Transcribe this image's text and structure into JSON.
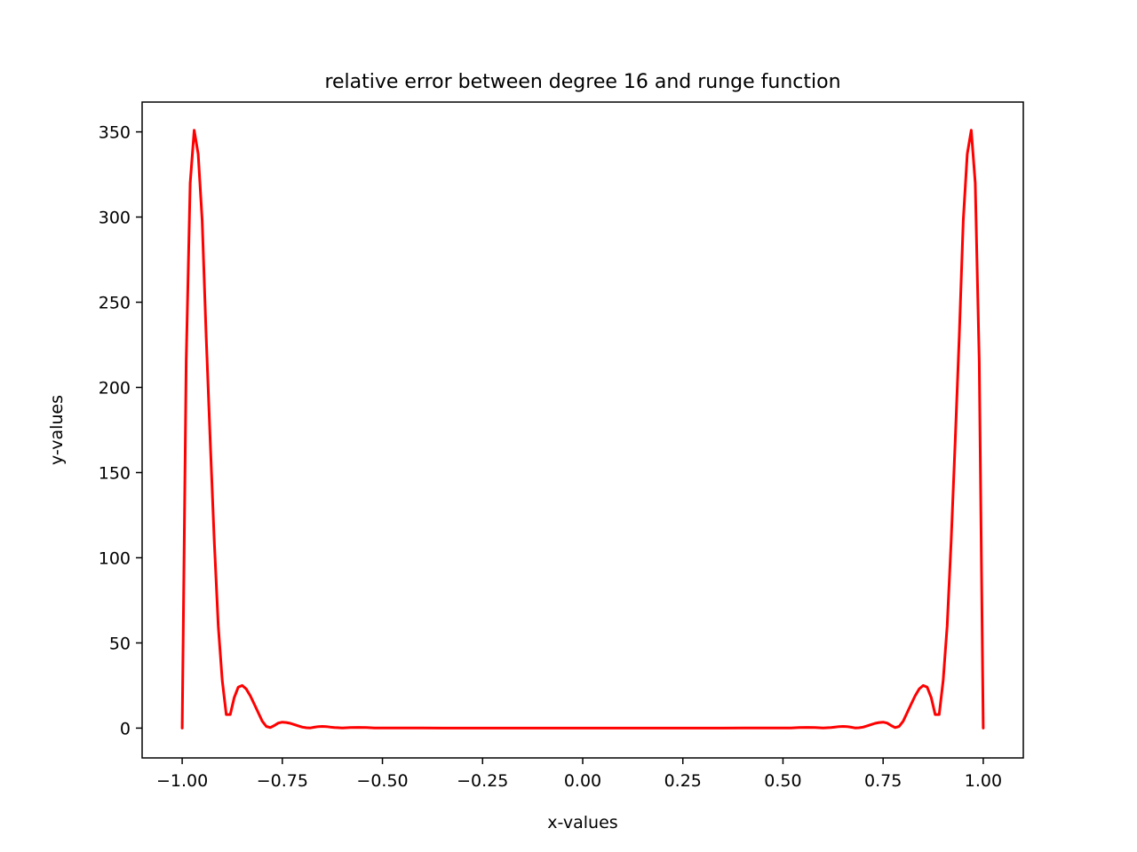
{
  "chart_data": {
    "type": "line",
    "title": "relative error between degree 16 and runge function",
    "xlabel": "x-values",
    "ylabel": "y-values",
    "xlim": [
      -1.1,
      1.1
    ],
    "ylim": [
      -17.5,
      367.5
    ],
    "xticks": [
      -1.0,
      -0.75,
      -0.5,
      -0.25,
      0.0,
      0.25,
      0.5,
      0.75,
      1.0
    ],
    "xtick_labels": [
      "−1.00",
      "−0.75",
      "−0.50",
      "−0.25",
      "0.00",
      "0.25",
      "0.50",
      "0.75",
      "1.00"
    ],
    "yticks": [
      0,
      50,
      100,
      150,
      200,
      250,
      300,
      350
    ],
    "ytick_labels": [
      "0",
      "50",
      "100",
      "150",
      "200",
      "250",
      "300",
      "350"
    ],
    "grid": false,
    "series": [
      {
        "color": "#ff0000",
        "x": [
          -1.0,
          -0.99,
          -0.98,
          -0.97,
          -0.96,
          -0.95,
          -0.94,
          -0.93,
          -0.92,
          -0.91,
          -0.9,
          -0.89,
          -0.88,
          -0.87,
          -0.86,
          -0.85,
          -0.84,
          -0.83,
          -0.82,
          -0.81,
          -0.8,
          -0.79,
          -0.78,
          -0.77,
          -0.76,
          -0.75,
          -0.74,
          -0.73,
          -0.72,
          -0.71,
          -0.7,
          -0.69,
          -0.68,
          -0.67,
          -0.66,
          -0.65,
          -0.64,
          -0.63,
          -0.62,
          -0.6,
          -0.58,
          -0.56,
          -0.54,
          -0.52,
          -0.5,
          -0.45,
          -0.4,
          -0.35,
          -0.3,
          -0.2,
          -0.1,
          0.0,
          0.1,
          0.2,
          0.3,
          0.35,
          0.4,
          0.45,
          0.5,
          0.52,
          0.54,
          0.56,
          0.58,
          0.6,
          0.62,
          0.63,
          0.64,
          0.65,
          0.66,
          0.67,
          0.68,
          0.69,
          0.7,
          0.71,
          0.72,
          0.73,
          0.74,
          0.75,
          0.76,
          0.77,
          0.78,
          0.79,
          0.8,
          0.81,
          0.82,
          0.83,
          0.84,
          0.85,
          0.86,
          0.87,
          0.88,
          0.89,
          0.9,
          0.91,
          0.92,
          0.93,
          0.94,
          0.95,
          0.96,
          0.97,
          0.98,
          0.99,
          1.0
        ],
        "y": [
          0,
          215,
          320,
          351,
          337,
          298,
          230,
          168,
          110,
          60,
          28,
          8,
          8,
          18,
          24,
          25,
          23,
          19,
          14,
          9,
          4,
          1,
          0.3,
          1.5,
          3,
          3.5,
          3.3,
          2.8,
          2.1,
          1.3,
          0.6,
          0.2,
          0.1,
          0.5,
          0.9,
          1.0,
          0.9,
          0.6,
          0.3,
          0.1,
          0.3,
          0.4,
          0.3,
          0.1,
          0.1,
          0.1,
          0.05,
          0.02,
          0.01,
          0,
          0,
          0,
          0,
          0,
          0.01,
          0.02,
          0.05,
          0.1,
          0.1,
          0.1,
          0.3,
          0.4,
          0.3,
          0.1,
          0.3,
          0.6,
          0.9,
          1.0,
          0.9,
          0.5,
          0.1,
          0.2,
          0.6,
          1.3,
          2.1,
          2.8,
          3.3,
          3.5,
          3,
          1.5,
          0.3,
          1,
          4,
          9,
          14,
          19,
          23,
          25,
          24,
          18,
          8,
          8,
          28,
          60,
          110,
          168,
          230,
          298,
          337,
          351,
          320,
          215,
          0
        ]
      }
    ]
  }
}
